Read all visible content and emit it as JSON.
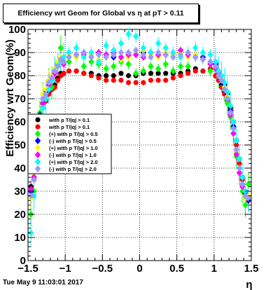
{
  "title": "Efficiency wrt Geom for Global vs   η at pT > 0.11",
  "timestamp": "Tue May  9 11:03:01 2017",
  "chart_data": {
    "type": "scatter",
    "xlabel": "η",
    "ylabel": "Efficiency wrt Geom(%)",
    "xlim": [
      -1.5,
      1.5
    ],
    "ylim": [
      0,
      100
    ],
    "xticks": [
      "−1.5",
      "−1",
      "−0.5",
      "0",
      "0.5",
      "1",
      "1.5"
    ],
    "yticks": [
      "0",
      "10",
      "20",
      "30",
      "40",
      "50",
      "60",
      "70",
      "80",
      "90",
      "100"
    ],
    "grid": true,
    "legend_position": "middle-left",
    "series": [
      {
        "name": "with p T/|q| > 0.1",
        "color": "#000000",
        "x": [
          -1.46,
          -1.42,
          -1.38,
          -1.34,
          -1.3,
          -1.26,
          -1.22,
          -1.18,
          -1.14,
          -1.1,
          -1.06,
          -1.02,
          -0.95,
          -0.85,
          -0.75,
          -0.65,
          -0.55,
          -0.45,
          -0.35,
          -0.25,
          -0.15,
          -0.05,
          0.05,
          0.15,
          0.25,
          0.35,
          0.45,
          0.55,
          0.65,
          0.75,
          0.85,
          0.95,
          1.02,
          1.06,
          1.1,
          1.14,
          1.18,
          1.22,
          1.26,
          1.3,
          1.34,
          1.38,
          1.42,
          1.46
        ],
        "y": [
          32,
          36,
          48,
          62,
          68,
          70,
          73,
          74,
          76,
          79,
          81,
          81,
          82,
          82,
          81,
          81,
          80,
          80,
          80,
          81,
          80,
          80,
          81,
          81,
          81,
          81,
          81,
          81,
          82,
          83,
          82,
          83,
          80,
          78,
          76,
          73,
          70,
          66,
          60,
          52,
          44,
          36,
          30,
          27
        ]
      },
      {
        "name": "with p T/|q| > 0.1",
        "color": "#ff0000",
        "x": [
          -1.46,
          -1.42,
          -1.38,
          -1.34,
          -1.3,
          -1.26,
          -1.22,
          -1.18,
          -1.14,
          -1.1,
          -1.06,
          -1.02,
          -0.95,
          -0.85,
          -0.75,
          -0.65,
          -0.55,
          -0.45,
          -0.35,
          -0.25,
          -0.15,
          -0.05,
          0.05,
          0.15,
          0.25,
          0.35,
          0.45,
          0.55,
          0.65,
          0.75,
          0.85,
          0.95,
          1.02,
          1.06,
          1.1,
          1.14,
          1.18,
          1.22,
          1.26,
          1.3,
          1.34,
          1.38,
          1.42,
          1.46
        ],
        "y": [
          30,
          35,
          47,
          60,
          66,
          69,
          72,
          74,
          75,
          78,
          80,
          81,
          82,
          82,
          81,
          80,
          79,
          78,
          78,
          78,
          77,
          77,
          77,
          78,
          78,
          78,
          79,
          80,
          81,
          82,
          82,
          83,
          80,
          78,
          75,
          72,
          69,
          65,
          58,
          50,
          42,
          35,
          30,
          26
        ]
      },
      {
        "name": "(+) with p T/|q| > 0.5",
        "color": "#00ff00",
        "x": [
          -1.46,
          -1.42,
          -1.38,
          -1.34,
          -1.3,
          -1.26,
          -1.22,
          -1.18,
          -1.14,
          -1.1,
          -1.06,
          -1.02,
          -0.95,
          -0.85,
          -0.75,
          -0.65,
          -0.55,
          -0.45,
          -0.35,
          -0.25,
          -0.15,
          -0.05,
          0.05,
          0.15,
          0.25,
          0.35,
          0.45,
          0.55,
          0.65,
          0.75,
          0.85,
          0.95,
          1.02,
          1.06,
          1.1,
          1.14,
          1.18,
          1.22,
          1.26,
          1.3,
          1.34,
          1.38,
          1.42,
          1.46
        ],
        "y": [
          20,
          30,
          50,
          64,
          72,
          70,
          78,
          75,
          82,
          85,
          92,
          88,
          86,
          88,
          84,
          86,
          85,
          83,
          84,
          86,
          85,
          81,
          82,
          84,
          83,
          85,
          82,
          84,
          84,
          88,
          87,
          82,
          84,
          80,
          78,
          74,
          68,
          62,
          55,
          45,
          38,
          30,
          24,
          33
        ]
      },
      {
        "name": "(-) with p T/|q| > 0.5",
        "color": "#0000ff",
        "x": [
          -1.46,
          -1.42,
          -1.38,
          -1.34,
          -1.3,
          -1.26,
          -1.22,
          -1.18,
          -1.14,
          -1.1,
          -1.06,
          -1.02,
          -0.95,
          -0.85,
          -0.75,
          -0.65,
          -0.55,
          -0.45,
          -0.35,
          -0.25,
          -0.15,
          -0.05,
          0.05,
          0.15,
          0.25,
          0.35,
          0.45,
          0.55,
          0.65,
          0.75,
          0.85,
          0.95,
          1.02,
          1.06,
          1.1,
          1.14,
          1.18,
          1.22,
          1.26,
          1.3,
          1.34,
          1.38,
          1.42,
          1.46
        ],
        "y": [
          30,
          38,
          55,
          63,
          70,
          73,
          78,
          80,
          82,
          84,
          87,
          86,
          90,
          89,
          90,
          89,
          90,
          89,
          88,
          88,
          89,
          90,
          90,
          90,
          89,
          89,
          89,
          90,
          90,
          89,
          88,
          86,
          85,
          82,
          80,
          76,
          72,
          65,
          58,
          48,
          40,
          33,
          29,
          26
        ]
      },
      {
        "name": "(+) with p T/|q| > 1.0",
        "color": "#ffff00",
        "x": [
          -1.46,
          -1.42,
          -1.38,
          -1.34,
          -1.3,
          -1.26,
          -1.22,
          -1.18,
          -1.14,
          -1.1,
          -1.06,
          -1.02,
          -0.95,
          -0.85,
          -0.75,
          -0.65,
          -0.55,
          -0.45,
          -0.35,
          -0.25,
          -0.15,
          -0.05,
          0.05,
          0.15,
          0.25,
          0.35,
          0.45,
          0.55,
          0.65,
          0.75,
          0.85,
          0.95,
          1.02,
          1.06,
          1.1,
          1.14,
          1.18,
          1.22,
          1.26,
          1.3,
          1.34,
          1.38,
          1.42,
          1.46
        ],
        "y": [
          27,
          38,
          52,
          62,
          72,
          74,
          78,
          80,
          83,
          86,
          88,
          87,
          89,
          88,
          88,
          89,
          87,
          88,
          89,
          87,
          88,
          90,
          91,
          89,
          88,
          90,
          89,
          90,
          88,
          89,
          87,
          85,
          84,
          81,
          79,
          75,
          71,
          64,
          57,
          47,
          40,
          32,
          27,
          28
        ]
      },
      {
        "name": "(-) with p T/|q| > 1.0",
        "color": "#ff00ff",
        "x": [
          -1.46,
          -1.42,
          -1.38,
          -1.34,
          -1.3,
          -1.26,
          -1.22,
          -1.18,
          -1.14,
          -1.1,
          -1.06,
          -1.02,
          -0.95,
          -0.85,
          -0.75,
          -0.65,
          -0.55,
          -0.45,
          -0.35,
          -0.25,
          -0.15,
          -0.05,
          0.05,
          0.15,
          0.25,
          0.35,
          0.45,
          0.55,
          0.65,
          0.75,
          0.85,
          0.95,
          1.02,
          1.06,
          1.1,
          1.14,
          1.18,
          1.22,
          1.26,
          1.3,
          1.34,
          1.38,
          1.42,
          1.46
        ],
        "y": [
          31,
          36,
          50,
          60,
          68,
          72,
          76,
          79,
          81,
          84,
          86,
          85,
          88,
          89,
          89,
          88,
          90,
          89,
          90,
          88,
          89,
          89,
          88,
          90,
          89,
          89,
          90,
          91,
          89,
          88,
          87,
          85,
          83,
          81,
          78,
          74,
          70,
          63,
          55,
          46,
          38,
          32,
          28,
          27
        ]
      },
      {
        "name": "(+) with p T/|q| > 2.0",
        "color": "#00ffff",
        "x": [
          -1.46,
          -1.42,
          -1.38,
          -1.34,
          -1.3,
          -1.26,
          -1.22,
          -1.18,
          -1.14,
          -1.1,
          -1.06,
          -1.02,
          -0.95,
          -0.85,
          -0.75,
          -0.65,
          -0.55,
          -0.45,
          -0.35,
          -0.25,
          -0.15,
          -0.05,
          0.05,
          0.15,
          0.25,
          0.35,
          0.45,
          0.55,
          0.65,
          0.75,
          0.85,
          0.95,
          1.02,
          1.06,
          1.1,
          1.14,
          1.18,
          1.22,
          1.26,
          1.3,
          1.34,
          1.38,
          1.42,
          1.46
        ],
        "y": [
          12,
          28,
          45,
          58,
          66,
          70,
          74,
          78,
          82,
          84,
          86,
          88,
          90,
          92,
          88,
          90,
          86,
          93,
          91,
          94,
          98,
          97,
          92,
          90,
          94,
          92,
          90,
          88,
          90,
          92,
          90,
          89,
          86,
          82,
          80,
          77,
          73,
          67,
          60,
          52,
          44,
          36,
          30,
          27
        ]
      },
      {
        "name": "(-) with p T/|q| > 2.0",
        "color": "#9999ff",
        "x": [
          -1.46,
          -1.42,
          -1.38,
          -1.34,
          -1.3,
          -1.26,
          -1.22,
          -1.18,
          -1.14,
          -1.1,
          -1.06,
          -1.02,
          -0.95,
          -0.85,
          -0.75,
          -0.65,
          -0.55,
          -0.45,
          -0.35,
          -0.25,
          -0.15,
          -0.05,
          0.05,
          0.15,
          0.25,
          0.35,
          0.45,
          0.55,
          0.65,
          0.75,
          0.85,
          0.95,
          1.02,
          1.06,
          1.1,
          1.14,
          1.18,
          1.22,
          1.26,
          1.3,
          1.34,
          1.38,
          1.42,
          1.46
        ],
        "y": [
          28,
          35,
          52,
          60,
          70,
          72,
          77,
          79,
          82,
          84,
          87,
          86,
          88,
          89,
          90,
          88,
          89,
          88,
          89,
          90,
          90,
          91,
          89,
          88,
          90,
          89,
          88,
          89,
          90,
          88,
          87,
          86,
          84,
          80,
          78,
          74,
          70,
          64,
          57,
          48,
          40,
          33,
          28,
          27
        ]
      }
    ]
  }
}
